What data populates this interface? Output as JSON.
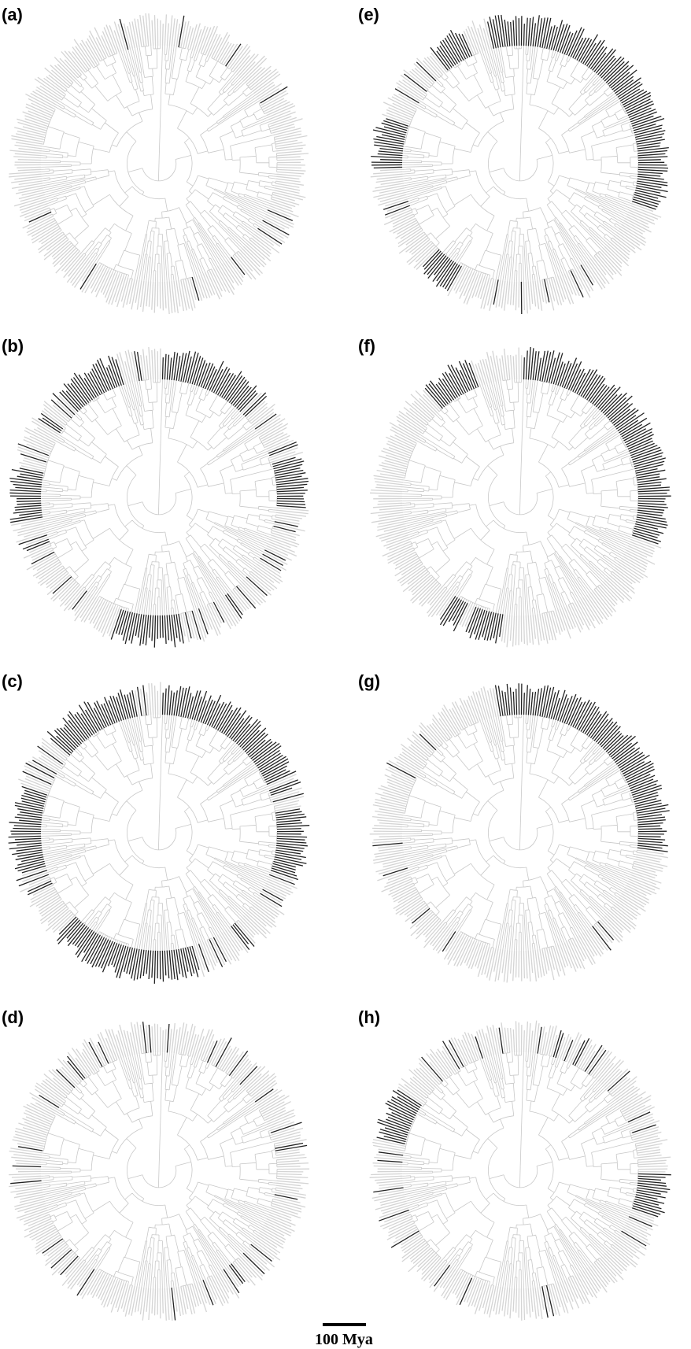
{
  "panels": [
    {
      "label": "(a)"
    },
    {
      "label": "(b)"
    },
    {
      "label": "(c)"
    },
    {
      "label": "(d)"
    },
    {
      "label": "(e)"
    },
    {
      "label": "(f)"
    },
    {
      "label": "(g)"
    },
    {
      "label": "(h)"
    }
  ],
  "scale_bar": {
    "label": "100 Mya"
  }
}
